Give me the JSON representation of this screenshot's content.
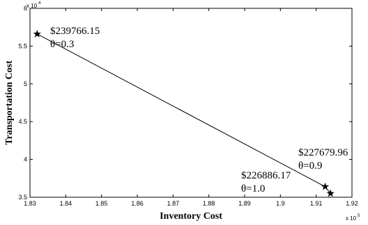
{
  "chart_data": {
    "type": "line",
    "title": "",
    "xlabel": "Inventory Cost",
    "ylabel": "Transportation Cost",
    "xlim": [
      183000,
      192000
    ],
    "ylim": [
      35000,
      60000
    ],
    "x_multiplier": "x 10",
    "x_multiplier_exp": "5",
    "y_multiplier": "x 10",
    "y_multiplier_exp": "4",
    "x_ticks": [
      183000,
      184000,
      185000,
      186000,
      187000,
      188000,
      189000,
      190000,
      191000,
      192000
    ],
    "x_tick_labels": [
      "1.83",
      "1.84",
      "1.85",
      "1.86",
      "1.87",
      "1.88",
      "1.89",
      "1.9",
      "1.91",
      "1.92"
    ],
    "y_ticks": [
      35000,
      40000,
      45000,
      50000,
      55000,
      60000
    ],
    "y_tick_labels": [
      "3.5",
      "4",
      "4.5",
      "5",
      "5.5",
      "6"
    ],
    "grid": false,
    "series": [
      {
        "marker": "star",
        "color": "#000000",
        "points": [
          {
            "x": 183200,
            "y": 56600
          },
          {
            "x": 191250,
            "y": 36400
          },
          {
            "x": 191400,
            "y": 35500
          }
        ]
      }
    ],
    "annotations": [
      {
        "cost": "$239766.15",
        "theta": "θ=0.3"
      },
      {
        "cost": "$227679.96",
        "theta": "θ=0.9"
      },
      {
        "cost": "$226886.17",
        "theta": "θ=1.0"
      }
    ]
  }
}
